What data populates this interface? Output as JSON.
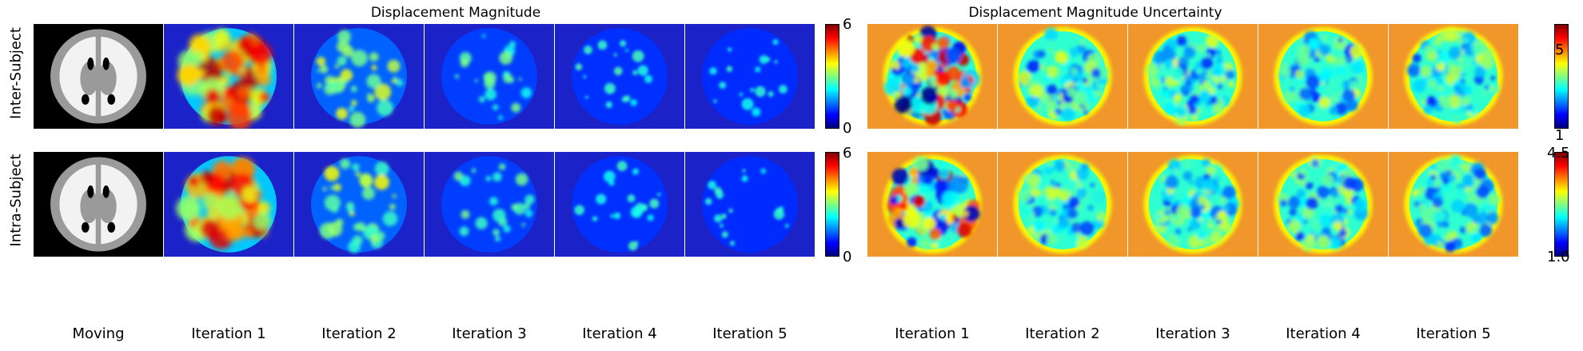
{
  "titles": {
    "magnitude": "Displacement Magnitude",
    "uncertainty": "Displacement Magnitude Uncertainty"
  },
  "row_labels": [
    "Inter-Subject",
    "Intra-Subject"
  ],
  "columns_left": [
    "Moving",
    "Iteration 1",
    "Iteration 2",
    "Iteration 3",
    "Iteration 4",
    "Iteration 5"
  ],
  "columns_right": [
    "Iteration 1",
    "Iteration 2",
    "Iteration 3",
    "Iteration 4",
    "Iteration 5"
  ],
  "colorbars": {
    "magnitude_row1": {
      "max": "6",
      "min": "0"
    },
    "magnitude_row2": {
      "max": "6",
      "min": "0"
    },
    "uncertainty_row1": {
      "max": "5",
      "min": "1"
    },
    "uncertainty_row2": {
      "max": "4.5",
      "min": "1.0"
    }
  },
  "colormap": "jet",
  "colors": {
    "jet_stops": [
      "#00007f",
      "#0000ff",
      "#007fff",
      "#00ffff",
      "#7fff7f",
      "#ffff00",
      "#ff7f00",
      "#ff0000",
      "#7f0000"
    ],
    "mag_background": "#1a22c8",
    "unc_background": "#f0962a",
    "moving_background": "#000000",
    "gray_matter": "#9a9a9a",
    "white_matter": "#f2f2f2"
  }
}
